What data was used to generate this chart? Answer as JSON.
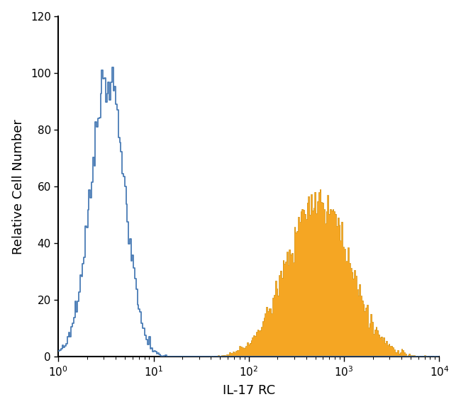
{
  "title": "",
  "xlabel": "IL-17 RC",
  "ylabel": "Relative Cell Number",
  "xlim": [
    1,
    10000
  ],
  "xlim_log": [
    0,
    4
  ],
  "ylim": [
    0,
    120
  ],
  "yticks": [
    0,
    20,
    40,
    60,
    80,
    100,
    120
  ],
  "blue_color": "#4a7cb5",
  "orange_color": "#f5a623",
  "orange_edge_color": "#d4900a",
  "xlabel_fontsize": 13,
  "ylabel_fontsize": 13,
  "tick_fontsize": 11,
  "blue_log_mean": 0.52,
  "blue_log_std": 0.18,
  "blue_peak_y": 102,
  "orange_log_mean": 2.72,
  "orange_log_std": 0.33,
  "orange_peak_y": 59,
  "n_bins": 300,
  "n_samples": 20000
}
